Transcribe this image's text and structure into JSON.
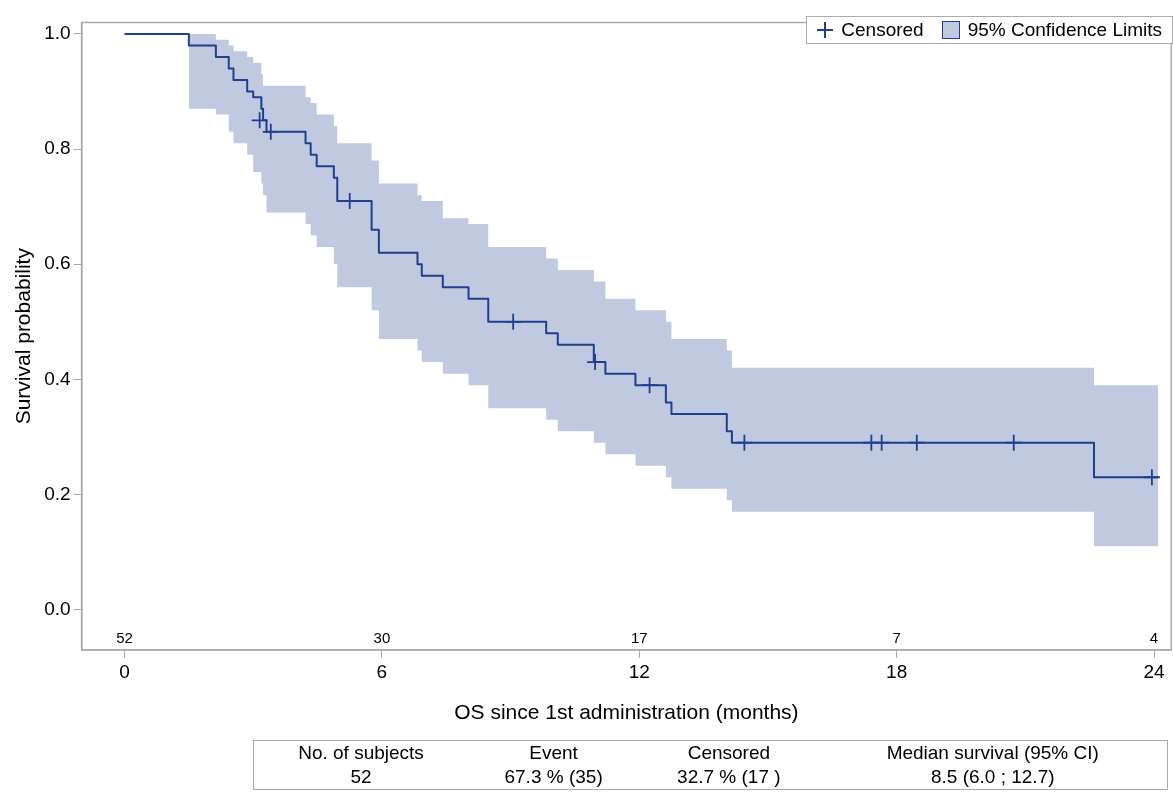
{
  "chart_data": {
    "type": "step",
    "xlabel": "OS since 1st administration (months)",
    "ylabel": "Survival probability",
    "xlim": [
      -1,
      24.4
    ],
    "xticks": [
      0,
      6,
      12,
      18,
      24
    ],
    "ylim": [
      -0.07,
      1.02
    ],
    "yticks": [
      {
        "value": 0,
        "label": "0.0"
      },
      {
        "value": 0.2,
        "label": "0.2"
      },
      {
        "value": 0.4,
        "label": "0.4"
      },
      {
        "value": 0.6,
        "label": "0.6"
      },
      {
        "value": 0.8,
        "label": "0.8"
      },
      {
        "value": 1,
        "label": "1.0"
      }
    ],
    "grid": false,
    "legend": "top right",
    "series": [
      {
        "type": "scatter",
        "name": "Censored",
        "color": "#1f3f8f",
        "marker": "cross",
        "x": [
          3.15,
          3.41,
          5.25,
          9.06,
          10.97,
          12.24,
          14.45,
          17.41,
          17.65,
          18.47,
          20.73,
          23.95
        ],
        "values": [
          0.85,
          0.83,
          0.71,
          0.5,
          0.43,
          0.39,
          0.29,
          0.29,
          0.29,
          0.29,
          0.29,
          0.23
        ]
      },
      {
        "name": "95% Confidence Limits",
        "color": "#1f3f8f",
        "x": [
          0,
          1.5,
          2.13,
          2.43,
          2.54,
          2.86,
          3.0,
          3.19,
          3.23,
          3.31,
          4.22,
          4.34,
          4.48,
          4.88,
          4.96,
          5.76,
          5.93,
          6.83,
          6.93,
          7.42,
          8.02,
          8.48,
          9.83,
          10.1,
          10.94,
          11.21,
          11.91,
          12.62,
          12.75,
          14.04,
          14.16,
          22.6,
          24.1
        ],
        "values": [
          1.0,
          0.98,
          0.96,
          0.94,
          0.92,
          0.9,
          0.89,
          0.87,
          0.85,
          0.83,
          0.81,
          0.79,
          0.77,
          0.75,
          0.71,
          0.66,
          0.62,
          0.6,
          0.58,
          0.56,
          0.54,
          0.5,
          0.48,
          0.46,
          0.43,
          0.41,
          0.39,
          0.36,
          0.34,
          0.31,
          0.29,
          0.23,
          0.23
        ],
        "upper": [
          null,
          1.0,
          0.99,
          0.98,
          0.97,
          0.96,
          0.95,
          0.93,
          0.91,
          0.91,
          0.89,
          0.88,
          0.86,
          0.84,
          0.81,
          0.78,
          0.74,
          0.72,
          0.71,
          0.68,
          0.67,
          0.63,
          0.61,
          0.59,
          0.57,
          0.54,
          0.52,
          0.5,
          0.47,
          0.45,
          0.42,
          0.39,
          0.39
        ],
        "lower": [
          null,
          0.87,
          0.86,
          0.83,
          0.81,
          0.79,
          0.76,
          0.74,
          0.72,
          0.69,
          0.67,
          0.65,
          0.63,
          0.6,
          0.56,
          0.52,
          0.47,
          0.45,
          0.43,
          0.41,
          0.39,
          0.35,
          0.33,
          0.31,
          0.29,
          0.27,
          0.25,
          0.23,
          0.21,
          0.19,
          0.17,
          0.11,
          0.11
        ]
      }
    ],
    "annotations": [
      "52",
      "30",
      "17",
      "7",
      "4",
      "No. of subjects",
      "Event",
      "Censored",
      "Median survival (95% CI)",
      "52",
      "67.3 % (35)",
      "32.7 % (17 )",
      "8.5 (6.0 ; 12.7)"
    ]
  }
}
